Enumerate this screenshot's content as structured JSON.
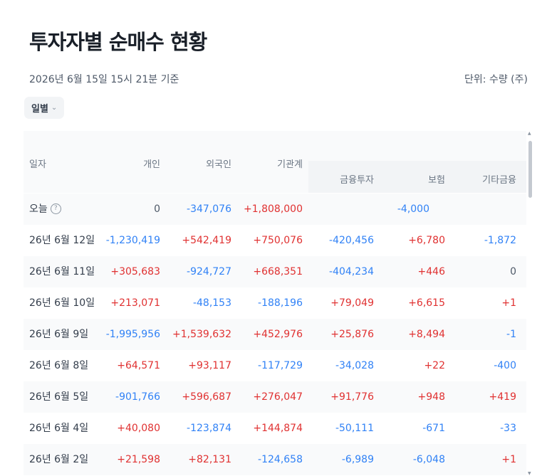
{
  "title": "투자자별 순매수 현황",
  "as_of": "2026년 6월 15일 15시 21분 기준",
  "unit_label": "단위: 수량 (주)",
  "period_select": {
    "selected": "일별",
    "icon": "chevron-down-icon"
  },
  "colors": {
    "buy": "#e03131",
    "sell": "#3182f6",
    "neutral": "#4e5968"
  },
  "table": {
    "headers": {
      "date": "일자",
      "individual": "개인",
      "foreign": "외국인",
      "institution": "기관계",
      "financial": "금융투자",
      "insurance": "보험",
      "other_finance": "기타금융"
    },
    "today_row": {
      "date": "오늘",
      "help_icon": "question-circle-icon",
      "individual": "0",
      "foreign": "-347,076",
      "institution": "+1,808,000",
      "insurance": "-4,000"
    },
    "rows": [
      {
        "date": "26년 6월 12일",
        "individual": "-1,230,419",
        "foreign": "+542,419",
        "institution": "+750,076",
        "financial": "-420,456",
        "insurance": "+6,780",
        "other_finance": "-1,872"
      },
      {
        "date": "26년 6월 11일",
        "individual": "+305,683",
        "foreign": "-924,727",
        "institution": "+668,351",
        "financial": "-404,234",
        "insurance": "+446",
        "other_finance": "0"
      },
      {
        "date": "26년 6월 10일",
        "individual": "+213,071",
        "foreign": "-48,153",
        "institution": "-188,196",
        "financial": "+79,049",
        "insurance": "+6,615",
        "other_finance": "+1"
      },
      {
        "date": "26년 6월 9일",
        "individual": "-1,995,956",
        "foreign": "+1,539,632",
        "institution": "+452,976",
        "financial": "+25,876",
        "insurance": "+8,494",
        "other_finance": "-1"
      },
      {
        "date": "26년 6월 8일",
        "individual": "+64,571",
        "foreign": "+93,117",
        "institution": "-117,729",
        "financial": "-34,028",
        "insurance": "+22",
        "other_finance": "-400"
      },
      {
        "date": "26년 6월 5일",
        "individual": "-901,766",
        "foreign": "+596,687",
        "institution": "+276,047",
        "financial": "+91,776",
        "insurance": "+948",
        "other_finance": "+419"
      },
      {
        "date": "26년 6월 4일",
        "individual": "+40,080",
        "foreign": "-123,874",
        "institution": "+144,874",
        "financial": "-50,111",
        "insurance": "-671",
        "other_finance": "-33"
      },
      {
        "date": "26년 6월 2일",
        "individual": "+21,598",
        "foreign": "+82,131",
        "institution": "-124,658",
        "financial": "-6,989",
        "insurance": "-6,048",
        "other_finance": "+1"
      }
    ]
  }
}
